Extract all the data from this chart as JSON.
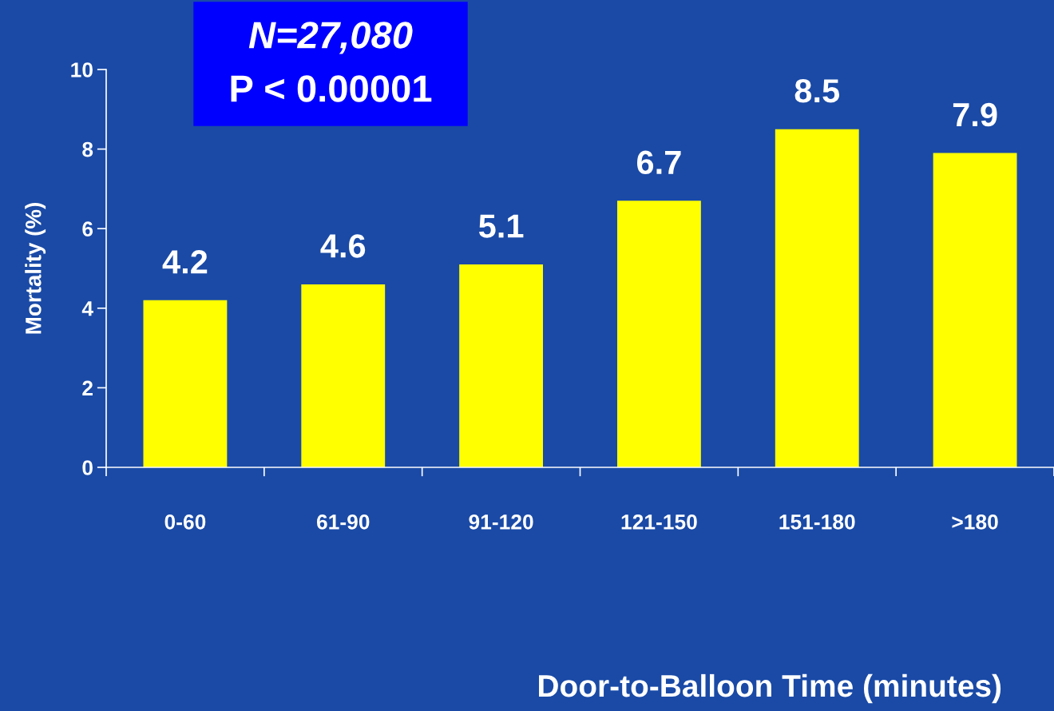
{
  "chart_data": {
    "type": "bar",
    "xlabel": "Door-to-Balloon Time (minutes)",
    "ylabel": "Mortality (%)",
    "categories": [
      "0-60",
      "61-90",
      "91-120",
      "121-150",
      "151-180",
      ">180"
    ],
    "values": [
      4.2,
      4.6,
      5.1,
      6.7,
      8.5,
      7.9
    ],
    "color": "#ffff00",
    "ylim": [
      0,
      10
    ],
    "yticks": [
      0,
      2,
      4,
      6,
      8,
      10
    ],
    "grid": false,
    "data_labels": true,
    "annotations": [
      "N=27,080",
      "P < 0.00001"
    ]
  }
}
